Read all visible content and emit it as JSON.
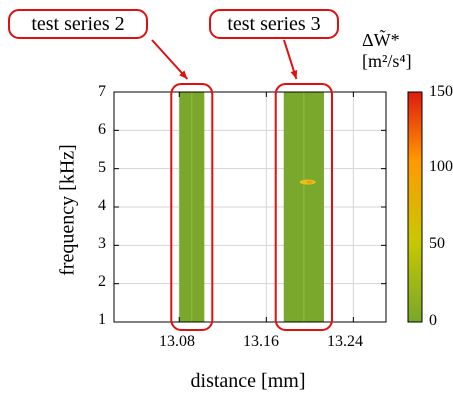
{
  "callouts": [
    {
      "text": "test series 2",
      "target_x": 13.092
    },
    {
      "text": "test series 3",
      "target_x": 13.195
    }
  ],
  "colorbar": {
    "label": "ΔW̃* [m²/s⁴]",
    "ticks": [
      "0",
      "50",
      "100",
      "150"
    ],
    "range": [
      0,
      150
    ],
    "colors": [
      "#78a82a",
      "#c8c800",
      "#ff9a00",
      "#e01a10"
    ]
  },
  "chart_data": {
    "type": "heatmap",
    "xlabel": "distance [mm]",
    "ylabel": "frequency [kHz]",
    "xlim": [
      13.02,
      13.27
    ],
    "ylim": [
      1,
      7
    ],
    "x_ticks": [
      "13.08",
      "13.16",
      "13.24"
    ],
    "x_tick_values": [
      13.08,
      13.16,
      13.24
    ],
    "y_ticks": [
      "1",
      "2",
      "3",
      "4",
      "5",
      "6",
      "7"
    ],
    "y_tick_values": [
      1,
      2,
      3,
      4,
      5,
      6,
      7
    ],
    "bands": [
      {
        "x_start": 13.08,
        "x_end": 13.103,
        "value": 15,
        "color": "#7aa82c"
      },
      {
        "x_start": 13.176,
        "x_end": 13.213,
        "value": 15,
        "color": "#7aa82c"
      }
    ],
    "hotspots": [
      {
        "x": 13.198,
        "y": 4.65,
        "value": 60
      }
    ]
  }
}
